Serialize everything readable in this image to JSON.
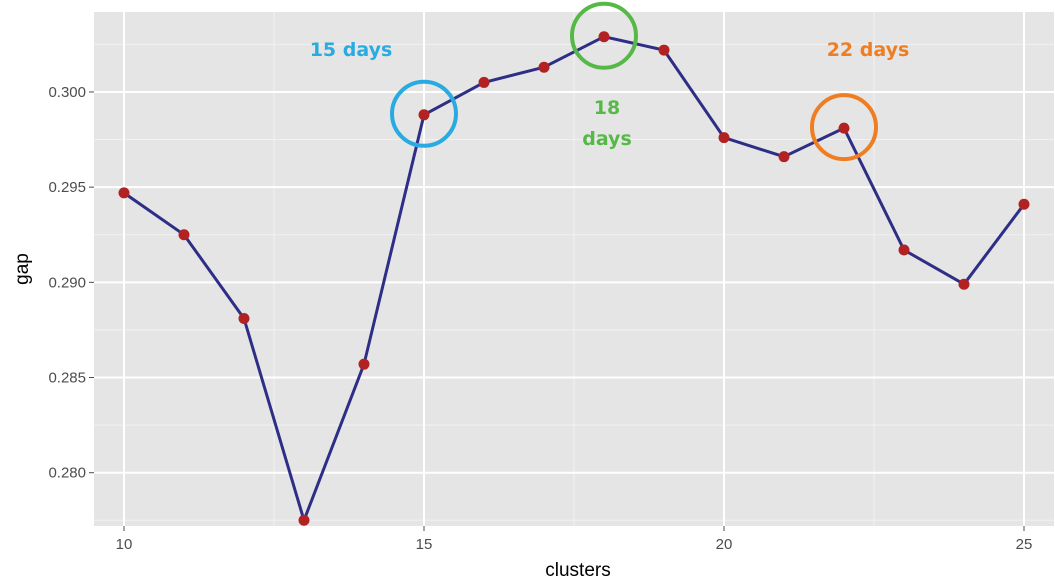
{
  "chart_data": {
    "type": "line",
    "xlabel": "clusters",
    "ylabel": "gap",
    "xlim": [
      9.5,
      25.5
    ],
    "ylim": [
      0.2772,
      0.3042
    ],
    "x_ticks": [
      10,
      15,
      20,
      25
    ],
    "y_ticks": [
      0.28,
      0.285,
      0.29,
      0.295,
      0.3
    ],
    "x_tick_labels": [
      "10",
      "15",
      "20",
      "25"
    ],
    "y_tick_labels": [
      "0.280",
      "0.285",
      "0.290",
      "0.295",
      "0.300"
    ],
    "grid": true,
    "background": "#e5e5e5",
    "line_color": "#2e2e86",
    "point_color": "#b22222",
    "series": [
      {
        "x": [
          10,
          11,
          12,
          13,
          14,
          15,
          16,
          17,
          18,
          19,
          20,
          21,
          22,
          23,
          24,
          25
        ],
        "values": [
          0.2947,
          0.2925,
          0.2881,
          0.2775,
          0.2857,
          0.2988,
          0.3005,
          0.3013,
          0.3029,
          0.3022,
          0.2976,
          0.2966,
          0.2981,
          0.2917,
          0.2899,
          0.2941
        ]
      }
    ],
    "annotations": [
      {
        "text": "15 days",
        "color": "#29abe2",
        "x": 15,
        "y": 0.2988
      },
      {
        "text": "18 days",
        "color": "#56b947",
        "x": 18,
        "y": 0.3029
      },
      {
        "text": "22 days",
        "color": "#ef7d22",
        "x": 22,
        "y": 0.2981
      }
    ]
  }
}
